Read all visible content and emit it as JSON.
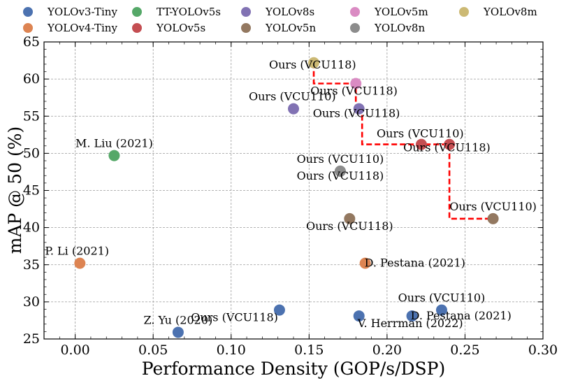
{
  "chart_data": {
    "type": "scatter",
    "xlabel": "Performance Density (GOP/s/DSP)",
    "ylabel": "mAP @ 50 (%)",
    "xlim": [
      -0.02,
      0.3
    ],
    "ylim": [
      25,
      65
    ],
    "xticks": [
      0.0,
      0.05,
      0.1,
      0.15,
      0.2,
      0.25,
      0.3
    ],
    "xtick_labels": [
      "0.00",
      "0.05",
      "0.10",
      "0.15",
      "0.20",
      "0.25",
      "0.30"
    ],
    "yticks": [
      25,
      30,
      35,
      40,
      45,
      50,
      55,
      60,
      65
    ],
    "ytick_labels": [
      "25",
      "30",
      "35",
      "40",
      "45",
      "50",
      "55",
      "60",
      "65"
    ],
    "grid": true,
    "legend_position": "top",
    "series": [
      {
        "name": "YOLOv3-Tiny",
        "color": "#4c72b0",
        "points": [
          {
            "x": 0.066,
            "y": 25.9,
            "label": "Z. Yu (2020)"
          },
          {
            "x": 0.131,
            "y": 28.9,
            "label": "Ours (VCU118)"
          },
          {
            "x": 0.182,
            "y": 28.1,
            "label": "V. Herrman (2022)"
          },
          {
            "x": 0.216,
            "y": 28.1,
            "label": "D. Pestana (2021)"
          },
          {
            "x": 0.235,
            "y": 28.9,
            "label": "Ours (VCU110)"
          }
        ]
      },
      {
        "name": "YOLOv4-Tiny",
        "color": "#dd8452",
        "points": [
          {
            "x": 0.003,
            "y": 35.2,
            "label": "P. Li (2021)"
          },
          {
            "x": 0.186,
            "y": 35.2,
            "label": "D. Pestana (2021)"
          }
        ]
      },
      {
        "name": "TT-YOLOv5s",
        "color": "#55a868",
        "points": [
          {
            "x": 0.025,
            "y": 49.7,
            "label": "M. Liu (2021)"
          }
        ]
      },
      {
        "name": "YOLOv5s",
        "color": "#c44e52",
        "points": [
          {
            "x": 0.222,
            "y": 51.2,
            "label": "Ours (VCU110)"
          },
          {
            "x": 0.24,
            "y": 51.2,
            "label": "Ours (VCU118)"
          }
        ]
      },
      {
        "name": "YOLOv8s",
        "color": "#8172b3",
        "points": [
          {
            "x": 0.14,
            "y": 56.0,
            "label": "Ours (VCU110)"
          },
          {
            "x": 0.182,
            "y": 56.0,
            "label": "Ours (VCU118)"
          }
        ]
      },
      {
        "name": "YOLOv5n",
        "color": "#937860",
        "points": [
          {
            "x": 0.176,
            "y": 41.2,
            "label": "Ours (VCU118)"
          },
          {
            "x": 0.268,
            "y": 41.2,
            "label": "Ours (VCU110)"
          }
        ]
      },
      {
        "name": "YOLOv5m",
        "color": "#da8bc3",
        "points": [
          {
            "x": 0.18,
            "y": 59.4,
            "label": "Ours (VCU118)"
          }
        ]
      },
      {
        "name": "YOLOv8n",
        "color": "#8c8c8c",
        "points": [
          {
            "x": 0.17,
            "y": 47.6,
            "label": "Ours (VCU110)"
          },
          {
            "x": 0.17,
            "y": 47.6,
            "label": "Ours (VCU118)"
          }
        ]
      },
      {
        "name": "YOLOv8m",
        "color": "#ccb974",
        "points": [
          {
            "x": 0.153,
            "y": 62.2,
            "label": "Ours (VCU118)"
          }
        ]
      }
    ],
    "pareto_front": {
      "style": "red dashed",
      "color": "#ff0000",
      "x": [
        0.153,
        0.153,
        0.18,
        0.18,
        0.184,
        0.184,
        0.24,
        0.24,
        0.268
      ],
      "y": [
        62.2,
        59.4,
        59.4,
        56.0,
        56.0,
        51.2,
        51.2,
        41.2,
        41.2
      ]
    }
  }
}
